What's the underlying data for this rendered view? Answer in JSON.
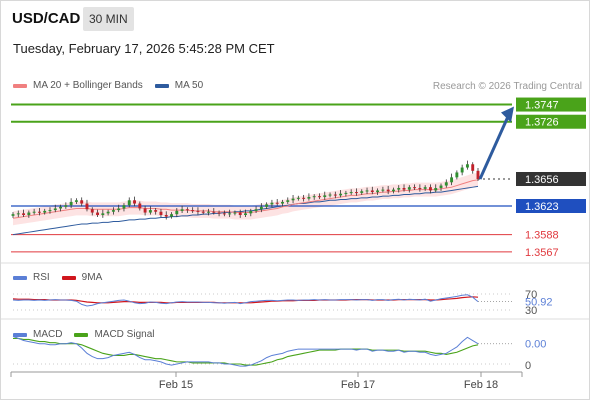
{
  "header": {
    "symbol": "USD/CAD",
    "timeframe": "30 MIN",
    "timestamp": "Tuesday, February 17, 2026 5:45:28 PM CET"
  },
  "legend": {
    "ma20": "MA 20 + Bollinger Bands",
    "ma50": "MA 50",
    "credit": "Research © 2026 Trading Central",
    "rsi": "RSI",
    "rsi_ma": "9MA",
    "macd": "MACD",
    "macd_signal": "MACD Signal"
  },
  "colors": {
    "green": "#4aa31a",
    "blue": "#1f4fbf",
    "red": "#e0393e",
    "dark": "#333333",
    "arrow": "#2e5b9e",
    "ma20": "#f08080",
    "ma50": "#2e5b9e",
    "band": "#fde3e3",
    "rsi": "#5b7fd6",
    "rsi_ma": "#d0161d",
    "macd": "#5b7fd6",
    "signal": "#4aa31a"
  },
  "chart_data": [
    {
      "type": "candlestick",
      "panel": "price",
      "x_ticks": [
        "Feb 15",
        "Feb 17",
        "Feb 18"
      ],
      "levels": [
        {
          "value": 1.3747,
          "label": "1.3747",
          "style": "green"
        },
        {
          "value": 1.3726,
          "label": "1.3726",
          "style": "green"
        },
        {
          "value": 1.3656,
          "label": "1.3656",
          "style": "current"
        },
        {
          "value": 1.3623,
          "label": "1.3623",
          "style": "blue"
        },
        {
          "value": 1.3588,
          "label": "1.3588",
          "style": "red"
        },
        {
          "value": 1.3567,
          "label": "1.3567",
          "style": "red"
        }
      ],
      "close": [
        1.3613,
        1.3614,
        1.3612,
        1.3615,
        1.3616,
        1.3615,
        1.3617,
        1.3618,
        1.362,
        1.3622,
        1.3624,
        1.3628,
        1.363,
        1.3626,
        1.3619,
        1.3615,
        1.3612,
        1.3614,
        1.3616,
        1.3618,
        1.362,
        1.3624,
        1.363,
        1.3626,
        1.362,
        1.3615,
        1.3618,
        1.3616,
        1.3612,
        1.361,
        1.3613,
        1.3617,
        1.3619,
        1.3618,
        1.3617,
        1.3616,
        1.3615,
        1.3616,
        1.3615,
        1.3614,
        1.3613,
        1.3614,
        1.3615,
        1.3612,
        1.3614,
        1.3617,
        1.3619,
        1.3622,
        1.3625,
        1.3627,
        1.3626,
        1.3628,
        1.363,
        1.3632,
        1.3633,
        1.3632,
        1.3634,
        1.3635,
        1.3634,
        1.3636,
        1.3637,
        1.3636,
        1.3638,
        1.3639,
        1.364,
        1.3639,
        1.3641,
        1.3642,
        1.364,
        1.3642,
        1.3643,
        1.3641,
        1.3643,
        1.3645,
        1.3643,
        1.3646,
        1.3645,
        1.3644,
        1.3646,
        1.3642,
        1.3645,
        1.3648,
        1.3652,
        1.3658,
        1.3664,
        1.367,
        1.3674,
        1.3666,
        1.3656
      ],
      "ma20": [
        1.3608,
        1.3609,
        1.361,
        1.3611,
        1.3612,
        1.3613,
        1.3614,
        1.3615,
        1.3616,
        1.3617,
        1.3618,
        1.3619,
        1.362,
        1.362,
        1.362,
        1.3619,
        1.3619,
        1.3619,
        1.3619,
        1.3619,
        1.3619,
        1.362,
        1.3621,
        1.3621,
        1.3621,
        1.362,
        1.362,
        1.362,
        1.3619,
        1.3619,
        1.3618,
        1.3618,
        1.3618,
        1.3618,
        1.3617,
        1.3617,
        1.3617,
        1.3617,
        1.3616,
        1.3616,
        1.3616,
        1.3616,
        1.3615,
        1.3615,
        1.3615,
        1.3615,
        1.3616,
        1.3617,
        1.3618,
        1.3619,
        1.362,
        1.3622,
        1.3623,
        1.3625,
        1.3626,
        1.3627,
        1.3628,
        1.3629,
        1.363,
        1.3631,
        1.3632,
        1.3633,
        1.3634,
        1.3635,
        1.3636,
        1.3636,
        1.3637,
        1.3638,
        1.3638,
        1.3639,
        1.364,
        1.364,
        1.3641,
        1.3641,
        1.3642,
        1.3642,
        1.3643,
        1.3643,
        1.3643,
        1.3643,
        1.3643,
        1.3644,
        1.3645,
        1.3646,
        1.3648,
        1.365,
        1.3652,
        1.3654,
        1.3655
      ],
      "ma50": [
        1.3588,
        1.3589,
        1.359,
        1.3591,
        1.3592,
        1.3593,
        1.3594,
        1.3595,
        1.3596,
        1.3597,
        1.3598,
        1.3599,
        1.36,
        1.3601,
        1.3601,
        1.3602,
        1.3602,
        1.3603,
        1.3603,
        1.3604,
        1.3604,
        1.3605,
        1.3606,
        1.3606,
        1.3607,
        1.3607,
        1.3608,
        1.3608,
        1.3609,
        1.3609,
        1.361,
        1.361,
        1.3611,
        1.3611,
        1.3612,
        1.3612,
        1.3613,
        1.3613,
        1.3614,
        1.3614,
        1.3615,
        1.3615,
        1.3616,
        1.3616,
        1.3617,
        1.3617,
        1.3618,
        1.3619,
        1.362,
        1.3621,
        1.3622,
        1.3623,
        1.3624,
        1.3625,
        1.3626,
        1.3626,
        1.3627,
        1.3628,
        1.3628,
        1.3629,
        1.363,
        1.363,
        1.3631,
        1.3631,
        1.3632,
        1.3632,
        1.3633,
        1.3633,
        1.3634,
        1.3634,
        1.3635,
        1.3635,
        1.3636,
        1.3636,
        1.3637,
        1.3637,
        1.3638,
        1.3638,
        1.3639,
        1.3639,
        1.364,
        1.364,
        1.3641,
        1.3642,
        1.3643,
        1.3644,
        1.3645,
        1.3646,
        1.3647
      ],
      "projection": {
        "from": 1.3656,
        "to": 1.3747
      }
    },
    {
      "type": "line",
      "panel": "rsi",
      "value_label": "50.92",
      "ticks": [
        70,
        30
      ],
      "rsi": [
        55,
        54,
        55,
        55,
        54,
        55,
        54,
        55,
        56,
        55,
        55,
        54,
        52,
        44,
        40,
        42,
        46,
        48,
        50,
        52,
        54,
        55,
        52,
        48,
        46,
        47,
        50,
        49,
        47,
        46,
        48,
        50,
        51,
        50,
        50,
        50,
        49,
        49,
        48,
        48,
        47,
        48,
        49,
        46,
        48,
        51,
        52,
        53,
        54,
        54,
        53,
        54,
        55,
        55,
        54,
        55,
        55,
        56,
        55,
        56,
        55,
        55,
        56,
        56,
        56,
        55,
        56,
        56,
        54,
        56,
        56,
        54,
        56,
        57,
        55,
        57,
        56,
        55,
        57,
        52,
        55,
        58,
        60,
        62,
        64,
        67,
        68,
        62,
        51
      ],
      "ma": [
        58,
        57,
        57,
        57,
        56,
        56,
        56,
        55,
        55,
        55,
        55,
        55,
        54,
        52,
        50,
        49,
        48,
        48,
        48,
        49,
        50,
        51,
        51,
        50,
        49,
        49,
        49,
        49,
        49,
        48,
        48,
        49,
        49,
        49,
        49,
        49,
        49,
        49,
        49,
        48,
        48,
        48,
        48,
        48,
        48,
        48,
        49,
        50,
        51,
        52,
        52,
        53,
        53,
        53,
        54,
        54,
        54,
        54,
        55,
        55,
        55,
        55,
        55,
        55,
        56,
        56,
        56,
        56,
        55,
        55,
        55,
        55,
        55,
        56,
        56,
        56,
        56,
        56,
        56,
        55,
        55,
        56,
        57,
        58,
        59,
        61,
        62,
        63,
        62
      ]
    },
    {
      "type": "line",
      "panel": "macd",
      "value_label": "0.00",
      "ticks": [
        0
      ],
      "macd": [
        2.6,
        2.4,
        2.2,
        2.1,
        2.0,
        1.9,
        1.9,
        1.8,
        1.8,
        1.9,
        1.9,
        2.0,
        1.9,
        1.5,
        1.0,
        0.7,
        0.5,
        0.5,
        0.6,
        0.8,
        0.9,
        1.0,
        1.1,
        0.9,
        0.6,
        0.4,
        0.4,
        0.3,
        0.2,
        0.0,
        -0.1,
        0.0,
        0.1,
        0.2,
        0.2,
        0.2,
        0.2,
        0.2,
        0.1,
        0.1,
        0.0,
        0.0,
        -0.1,
        -0.2,
        -0.2,
        -0.1,
        0.1,
        0.3,
        0.6,
        0.8,
        0.9,
        1.0,
        1.2,
        1.3,
        1.4,
        1.4,
        1.4,
        1.4,
        1.4,
        1.4,
        1.4,
        1.4,
        1.4,
        1.4,
        1.4,
        1.3,
        1.4,
        1.4,
        1.2,
        1.3,
        1.3,
        1.2,
        1.2,
        1.3,
        1.1,
        1.2,
        1.2,
        1.1,
        1.1,
        0.9,
        0.8,
        0.9,
        1.0,
        1.3,
        1.6,
        2.1,
        2.5,
        2.2,
        1.9
      ],
      "signal": [
        2.4,
        2.4,
        2.3,
        2.3,
        2.2,
        2.1,
        2.1,
        2.0,
        2.0,
        1.9,
        1.9,
        1.9,
        1.9,
        1.8,
        1.6,
        1.4,
        1.2,
        1.0,
        0.9,
        0.8,
        0.8,
        0.8,
        0.9,
        0.9,
        0.8,
        0.7,
        0.6,
        0.5,
        0.5,
        0.4,
        0.3,
        0.2,
        0.2,
        0.2,
        0.1,
        0.1,
        0.1,
        0.1,
        0.1,
        0.1,
        0.1,
        0.0,
        0.0,
        0.0,
        -0.1,
        -0.1,
        -0.1,
        0.0,
        0.1,
        0.2,
        0.4,
        0.5,
        0.7,
        0.8,
        0.9,
        1.0,
        1.1,
        1.2,
        1.3,
        1.3,
        1.3,
        1.3,
        1.4,
        1.4,
        1.4,
        1.4,
        1.4,
        1.4,
        1.3,
        1.3,
        1.3,
        1.3,
        1.3,
        1.3,
        1.2,
        1.2,
        1.2,
        1.2,
        1.2,
        1.1,
        1.0,
        1.0,
        0.9,
        1.0,
        1.1,
        1.3,
        1.5,
        1.7,
        1.8
      ]
    }
  ]
}
